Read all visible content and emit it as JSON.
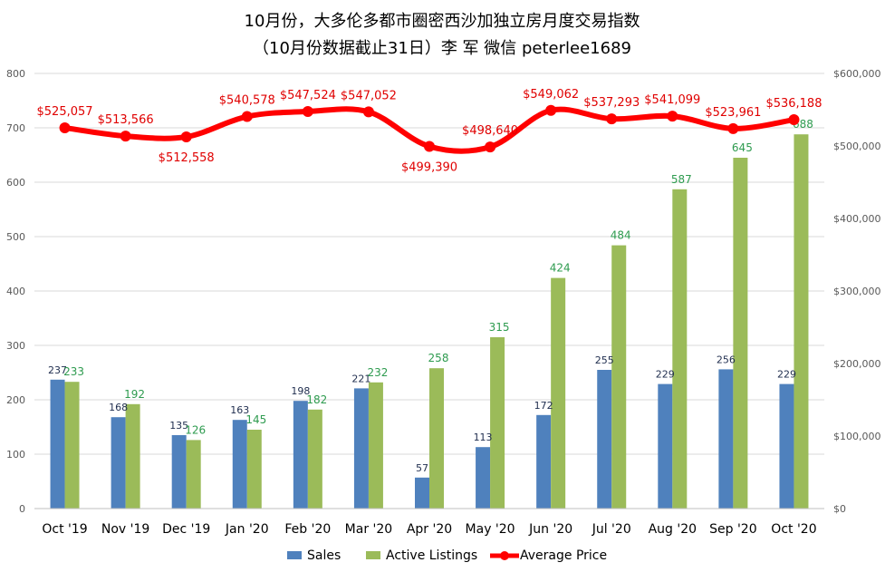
{
  "chart_data": {
    "type": "bar",
    "title": "10月份，大多伦多都市圈密西沙加独立房月度交易指数",
    "subtitle": "（10月份数据截止31日）李 军  微信  peterlee1689",
    "categories": [
      "Oct '19",
      "Nov '19",
      "Dec '19",
      "Jan '20",
      "Feb '20",
      "Mar '20",
      "Apr '20",
      "May '20",
      "Jun '20",
      "Jul '20",
      "Aug '20",
      "Sep '20",
      "Oct '20"
    ],
    "series": [
      {
        "name": "Sales",
        "type": "bar",
        "axis": "left",
        "color": "#4f81bd",
        "values": [
          237,
          168,
          135,
          163,
          198,
          221,
          57,
          113,
          172,
          255,
          229,
          256,
          229
        ],
        "labels": [
          "237",
          "168",
          "135",
          "163",
          "198",
          "221",
          "57",
          "113",
          "172",
          "255",
          "229",
          "256",
          "229"
        ]
      },
      {
        "name": "Active Listings",
        "type": "bar",
        "axis": "left",
        "color": "#9bbb59",
        "values": [
          233,
          192,
          126,
          145,
          182,
          232,
          258,
          315,
          424,
          484,
          587,
          645,
          688
        ],
        "labels": [
          "233",
          "192",
          "126",
          "145",
          "182",
          "232",
          "258",
          "315",
          "424",
          "484",
          "587",
          "645",
          "688"
        ]
      },
      {
        "name": "Average Price",
        "type": "line",
        "axis": "right",
        "color": "#ff0000",
        "values": [
          525057,
          513566,
          512558,
          540578,
          547524,
          547052,
          499390,
          498640,
          549062,
          537293,
          541099,
          523961,
          536188
        ],
        "labels": [
          "$525,057",
          "$513,566",
          "$512,558",
          "$540,578",
          "$547,524",
          "$547,052",
          "$499,390",
          "$498,640",
          "$549,062",
          "$537,293",
          "$541,099",
          "$523,961",
          "$536,188"
        ],
        "label_positions": [
          "above",
          "above",
          "below",
          "above",
          "above",
          "above",
          "below",
          "above",
          "above",
          "above",
          "above",
          "above",
          "above"
        ]
      }
    ],
    "y_left": {
      "min": 0,
      "max": 800,
      "ticks": [
        "0",
        "100",
        "200",
        "300",
        "400",
        "500",
        "600",
        "700",
        "800"
      ]
    },
    "y_right": {
      "min": 0,
      "max": 600000,
      "ticks": [
        "$0",
        "$100,000",
        "$200,000",
        "$300,000",
        "$400,000",
        "$500,000",
        "$600,000"
      ]
    },
    "grid": true,
    "legend_position": "bottom"
  }
}
